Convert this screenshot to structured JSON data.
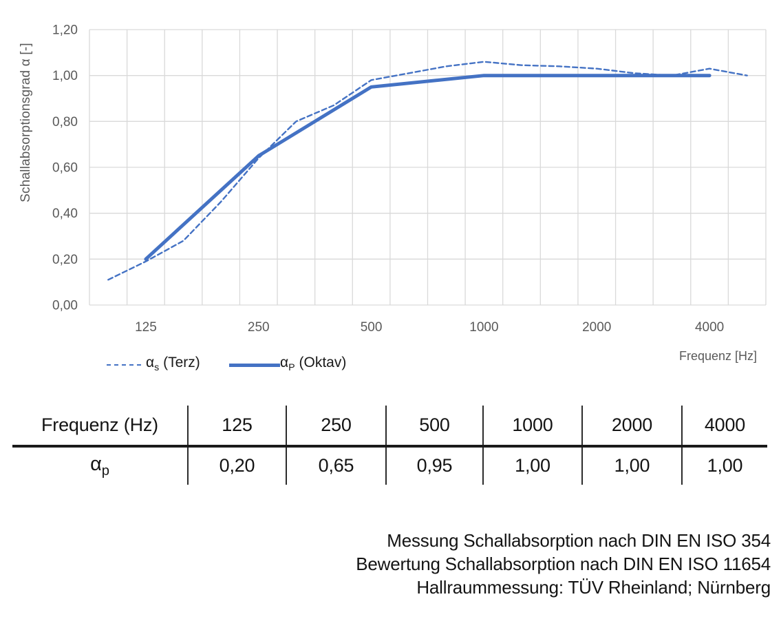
{
  "colors": {
    "line_blue": "#4472C4",
    "gridline": "#D9D9D9",
    "axis_text": "#595959",
    "text_black": "#1a1a1a"
  },
  "chart_data": {
    "type": "line",
    "title": "",
    "xlabel": "Frequenz [Hz]",
    "ylabel": "Schallabsorptionsgrad α [-]",
    "x_scale": "third-octave frequency categories (logarithmic spacing)",
    "categories": [
      100,
      125,
      160,
      200,
      250,
      315,
      400,
      500,
      630,
      800,
      1000,
      1250,
      1600,
      2000,
      2500,
      3150,
      4000,
      5000
    ],
    "series": [
      {
        "name": "αs (Terz)",
        "line_style": "dashed",
        "values": [
          0.11,
          0.19,
          0.28,
          0.45,
          0.64,
          0.8,
          0.87,
          0.98,
          1.01,
          1.04,
          1.06,
          1.045,
          1.04,
          1.03,
          1.01,
          1.0,
          1.03,
          1.0
        ]
      },
      {
        "name": "αP (Oktav)",
        "line_style": "solid",
        "x": [
          125,
          250,
          500,
          1000,
          2000,
          4000
        ],
        "values": [
          0.2,
          0.65,
          0.95,
          1.0,
          1.0,
          1.0
        ]
      }
    ],
    "ylim": [
      0,
      1.2
    ],
    "y_tick_labels": [
      "0,00",
      "0,20",
      "0,40",
      "0,60",
      "0,80",
      "1,00",
      "1,20"
    ],
    "x_tick_labels": [
      "125",
      "250",
      "500",
      "1000",
      "2000",
      "4000"
    ],
    "grid": true,
    "legend_position": "below-left"
  },
  "legend": {
    "items": [
      {
        "symbol": "α",
        "subscript": "s",
        "rest": " (Terz)"
      },
      {
        "symbol": "α",
        "subscript": "P",
        "rest": " (Oktav)"
      }
    ]
  },
  "table": {
    "header": [
      "Frequenz (Hz)",
      "125",
      "250",
      "500",
      "1000",
      "2000",
      "4000"
    ],
    "row_label": {
      "symbol": "α",
      "subscript": "p"
    },
    "values": [
      "0,20",
      "0,65",
      "0,95",
      "1,00",
      "1,00",
      "1,00"
    ]
  },
  "footnote": {
    "lines": [
      "Messung Schallabsorption nach DIN EN ISO 354",
      "Bewertung Schallabsorption nach DIN EN ISO 11654",
      "Hallraummessung: TÜV Rheinland; Nürnberg"
    ]
  }
}
